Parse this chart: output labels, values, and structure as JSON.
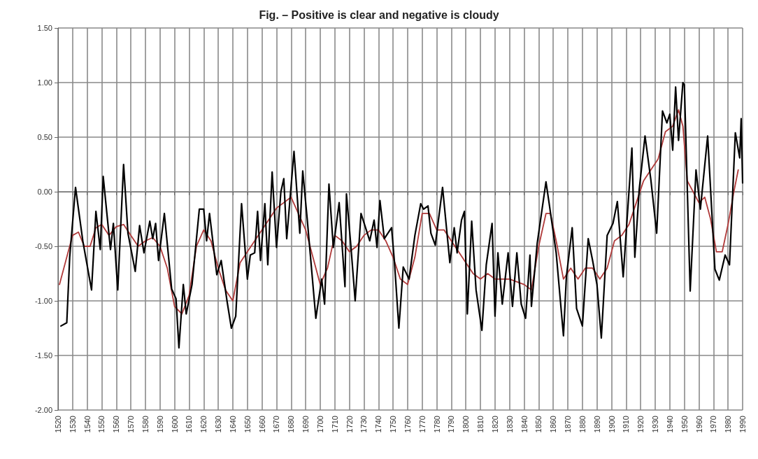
{
  "chart_data": {
    "type": "line",
    "title": "Fig. – Positive is clear and negative is cloudy",
    "xlim": [
      1520,
      1990
    ],
    "xticks": [
      1520,
      1530,
      1540,
      1550,
      1560,
      1570,
      1580,
      1590,
      1600,
      1610,
      1620,
      1630,
      1640,
      1650,
      1660,
      1670,
      1680,
      1690,
      1700,
      1710,
      1720,
      1730,
      1740,
      1750,
      1760,
      1770,
      1780,
      1790,
      1800,
      1810,
      1820,
      1830,
      1840,
      1850,
      1860,
      1870,
      1880,
      1890,
      1900,
      1910,
      1920,
      1930,
      1940,
      1950,
      1960,
      1970,
      1980,
      1990
    ],
    "ylim": [
      -2,
      1.5
    ],
    "yticks": [
      {
        "value": -2,
        "label": "-2.00"
      },
      {
        "value": -1.5,
        "label": "-1.50"
      },
      {
        "value": -1,
        "label": "-1.00"
      },
      {
        "value": -0.5,
        "label": "-0.50"
      },
      {
        "value": 0,
        "label": "0.00"
      },
      {
        "value": 0.5,
        "label": "0.50"
      },
      {
        "value": 1,
        "label": "1.00"
      },
      {
        "value": 1.5,
        "label": "1.50"
      }
    ],
    "grid": true,
    "marker": "none",
    "line_style": "solid",
    "series": [
      {
        "color": "#000000",
        "x": [
          1522,
          1526,
          1528,
          1532,
          1537,
          1543,
          1546,
          1549,
          1551,
          1556,
          1558,
          1561,
          1565,
          1568,
          1573,
          1576,
          1579,
          1583,
          1585,
          1587,
          1589,
          1593,
          1598,
          1601,
          1603,
          1606,
          1608,
          1612,
          1617,
          1620,
          1622,
          1624,
          1629,
          1632,
          1636,
          1639,
          1642,
          1646,
          1650,
          1652,
          1655,
          1657,
          1659,
          1662,
          1664,
          1667,
          1670,
          1673,
          1675,
          1677,
          1682,
          1686,
          1688,
          1691,
          1697,
          1701,
          1703,
          1706,
          1709,
          1713,
          1717,
          1718,
          1721,
          1724,
          1728,
          1734,
          1737,
          1739,
          1741,
          1744,
          1749,
          1751,
          1754,
          1757,
          1761,
          1765,
          1769,
          1771,
          1774,
          1776,
          1779,
          1784,
          1789,
          1792,
          1794,
          1797,
          1799,
          1801,
          1804,
          1807,
          1811,
          1814,
          1818,
          1820,
          1822,
          1825,
          1829,
          1832,
          1835,
          1838,
          1841,
          1844,
          1845,
          1849,
          1855,
          1857,
          1862,
          1867,
          1869,
          1873,
          1876,
          1880,
          1884,
          1887,
          1890,
          1893,
          1897,
          1901,
          1904,
          1908,
          1914,
          1916,
          1919,
          1923,
          1927,
          1931,
          1935,
          1938,
          1940,
          1942,
          1944,
          1946,
          1949,
          1950,
          1954,
          1958,
          1961,
          1966,
          1971,
          1974,
          1978,
          1981,
          1985,
          1988,
          1989,
          1990
        ],
        "values": [
          -1.23,
          -1.2,
          -0.6,
          0.04,
          -0.45,
          -0.9,
          -0.18,
          -0.53,
          0.14,
          -0.53,
          -0.29,
          -0.9,
          0.25,
          -0.38,
          -0.73,
          -0.31,
          -0.56,
          -0.27,
          -0.43,
          -0.29,
          -0.63,
          -0.2,
          -0.89,
          -0.98,
          -1.43,
          -0.85,
          -1.12,
          -0.85,
          -0.16,
          -0.16,
          -0.45,
          -0.2,
          -0.76,
          -0.63,
          -1.0,
          -1.25,
          -1.14,
          -0.11,
          -0.8,
          -0.58,
          -0.56,
          -0.18,
          -0.63,
          -0.11,
          -0.67,
          0.18,
          -0.51,
          0.0,
          0.12,
          -0.43,
          0.37,
          -0.38,
          0.19,
          -0.24,
          -1.16,
          -0.8,
          -1.03,
          0.07,
          -0.51,
          -0.1,
          -0.87,
          -0.02,
          -0.49,
          -1.0,
          -0.2,
          -0.45,
          -0.26,
          -0.51,
          -0.08,
          -0.43,
          -0.33,
          -0.65,
          -1.25,
          -0.69,
          -0.8,
          -0.4,
          -0.11,
          -0.16,
          -0.13,
          -0.38,
          -0.49,
          0.04,
          -0.65,
          -0.33,
          -0.56,
          -0.26,
          -0.18,
          -1.12,
          -0.27,
          -0.9,
          -1.27,
          -0.67,
          -0.29,
          -1.14,
          -0.56,
          -1.03,
          -0.56,
          -1.05,
          -0.56,
          -1.03,
          -1.16,
          -0.58,
          -1.05,
          -0.47,
          0.09,
          -0.09,
          -0.56,
          -1.32,
          -0.78,
          -0.33,
          -1.07,
          -1.23,
          -0.43,
          -0.63,
          -0.85,
          -1.34,
          -0.4,
          -0.29,
          -0.09,
          -0.78,
          0.4,
          -0.6,
          0.02,
          0.51,
          0.11,
          -0.38,
          0.74,
          0.63,
          0.71,
          0.38,
          0.96,
          0.47,
          1.0,
          0.98,
          -0.91,
          0.2,
          -0.16,
          0.51,
          -0.71,
          -0.81,
          -0.58,
          -0.67,
          0.54,
          0.31,
          0.67,
          0.08
        ]
      },
      {
        "color": "#b03a3a",
        "x": [
          1521,
          1526,
          1530,
          1534,
          1538,
          1542,
          1546,
          1550,
          1555,
          1560,
          1565,
          1570,
          1575,
          1580,
          1585,
          1590,
          1595,
          1600,
          1605,
          1610,
          1615,
          1620,
          1625,
          1630,
          1635,
          1640,
          1645,
          1650,
          1655,
          1660,
          1665,
          1670,
          1675,
          1680,
          1685,
          1690,
          1695,
          1700,
          1705,
          1710,
          1715,
          1720,
          1725,
          1730,
          1735,
          1740,
          1745,
          1750,
          1755,
          1760,
          1765,
          1770,
          1775,
          1780,
          1785,
          1790,
          1795,
          1800,
          1805,
          1810,
          1815,
          1820,
          1830,
          1840,
          1845,
          1850,
          1855,
          1858,
          1862,
          1867,
          1872,
          1877,
          1882,
          1887,
          1892,
          1897,
          1902,
          1907,
          1912,
          1917,
          1922,
          1927,
          1932,
          1937,
          1942,
          1946,
          1949,
          1952,
          1956,
          1960,
          1964,
          1968,
          1972,
          1976,
          1980,
          1984,
          1987
        ],
        "values": [
          -0.85,
          -0.6,
          -0.4,
          -0.37,
          -0.5,
          -0.5,
          -0.33,
          -0.3,
          -0.4,
          -0.32,
          -0.3,
          -0.4,
          -0.5,
          -0.45,
          -0.42,
          -0.5,
          -0.7,
          -1.05,
          -1.12,
          -0.95,
          -0.5,
          -0.35,
          -0.45,
          -0.7,
          -0.9,
          -1.0,
          -0.65,
          -0.55,
          -0.45,
          -0.35,
          -0.25,
          -0.15,
          -0.1,
          -0.05,
          -0.2,
          -0.35,
          -0.6,
          -0.85,
          -0.7,
          -0.4,
          -0.45,
          -0.55,
          -0.5,
          -0.4,
          -0.35,
          -0.35,
          -0.45,
          -0.6,
          -0.8,
          -0.85,
          -0.6,
          -0.2,
          -0.2,
          -0.35,
          -0.35,
          -0.45,
          -0.55,
          -0.65,
          -0.75,
          -0.8,
          -0.75,
          -0.8,
          -0.8,
          -0.85,
          -0.9,
          -0.5,
          -0.2,
          -0.2,
          -0.45,
          -0.8,
          -0.7,
          -0.8,
          -0.7,
          -0.7,
          -0.8,
          -0.7,
          -0.45,
          -0.4,
          -0.3,
          -0.1,
          0.1,
          0.2,
          0.3,
          0.55,
          0.6,
          0.75,
          0.6,
          0.1,
          0.0,
          -0.1,
          -0.05,
          -0.25,
          -0.55,
          -0.55,
          -0.3,
          0.0,
          0.2
        ]
      }
    ]
  }
}
